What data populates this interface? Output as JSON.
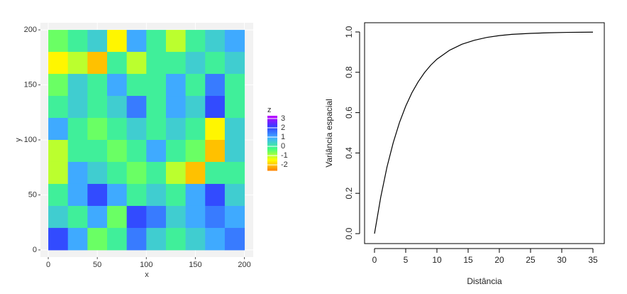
{
  "chart_data": [
    {
      "type": "heatmap",
      "xlabel": "x",
      "ylabel": "y",
      "legend_title": "z",
      "x": [
        10,
        30,
        50,
        70,
        90,
        110,
        130,
        150,
        170,
        190
      ],
      "y": [
        190,
        170,
        150,
        130,
        110,
        90,
        70,
        50,
        30,
        10
      ],
      "z": [
        [
          -0.5,
          0,
          0.5,
          -1.5,
          1,
          0,
          -1,
          0,
          0.5,
          1
        ],
        [
          -1.5,
          -1,
          -2,
          0,
          -1,
          0,
          0,
          0.5,
          0,
          0.5
        ],
        [
          -0.5,
          0.5,
          0,
          1,
          0,
          0,
          1,
          0,
          1.5,
          0
        ],
        [
          0,
          0.5,
          0,
          0.5,
          1.5,
          0,
          1,
          0.5,
          2,
          0
        ],
        [
          1,
          0,
          -0.5,
          0,
          0.5,
          0,
          0.5,
          0,
          -1.5,
          0.5
        ],
        [
          -1,
          0,
          0,
          -0.5,
          0,
          1,
          0,
          -0.5,
          -2,
          0.5
        ],
        [
          -1,
          1,
          0.5,
          0,
          -0.5,
          0,
          -1,
          -2,
          0,
          0
        ],
        [
          0,
          1,
          2,
          1,
          0,
          0.5,
          0,
          1,
          2,
          0.5
        ],
        [
          0.5,
          0,
          1,
          -0.5,
          2,
          1.5,
          0.5,
          1,
          1.5,
          1
        ],
        [
          2,
          1,
          -0.5,
          0,
          1.5,
          0.5,
          0,
          0.5,
          1,
          1.5
        ]
      ],
      "xlim": [
        -8,
        209
      ],
      "ylim": [
        -6.5,
        206.5
      ],
      "xticks": [
        0,
        50,
        100,
        150,
        200
      ],
      "yticks": [
        0,
        50,
        100,
        150,
        200
      ],
      "zlim": [
        -2.6,
        3.3
      ],
      "zticks": [
        3,
        2,
        1,
        0,
        -1,
        -2
      ],
      "colors": [
        "#ff8000",
        "#ffff00",
        "#40ff80",
        "#40b0ff",
        "#3040ff",
        "#c000ff"
      ],
      "grid": true
    },
    {
      "type": "line",
      "xlabel": "Distância",
      "ylabel": "Variância espacial",
      "x": [
        0,
        1,
        2,
        3,
        4,
        5,
        6,
        7,
        8,
        9,
        10,
        12,
        14,
        16,
        18,
        20,
        22,
        25,
        28,
        31,
        35
      ],
      "values": [
        0,
        0.181,
        0.33,
        0.451,
        0.551,
        0.632,
        0.699,
        0.753,
        0.798,
        0.835,
        0.865,
        0.909,
        0.939,
        0.959,
        0.973,
        0.982,
        0.988,
        0.993,
        0.996,
        0.998,
        0.999
      ],
      "color": "#000000",
      "xlim": [
        0,
        35
      ],
      "ylim": [
        0,
        1
      ],
      "xticks": [
        0,
        5,
        10,
        15,
        20,
        25,
        30,
        35
      ],
      "yticks": [
        {
          "value": 0,
          "label": "0.0"
        },
        0.2,
        0.4,
        0.6,
        0.8,
        {
          "value": 1,
          "label": "1.0"
        }
      ]
    }
  ]
}
